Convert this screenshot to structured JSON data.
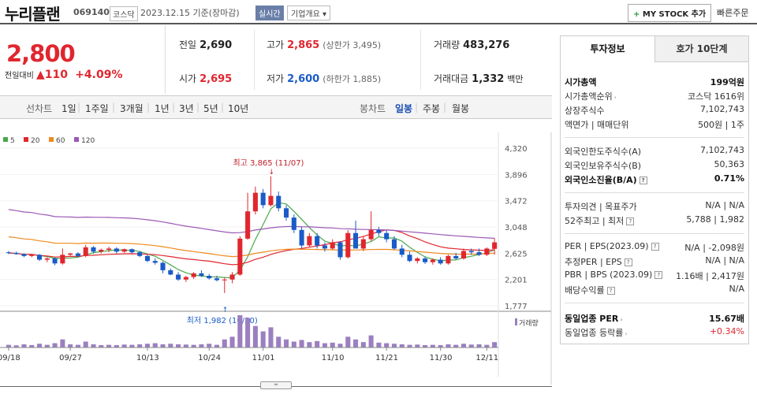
{
  "header": {
    "name": "누리플랜",
    "code": "069140",
    "market": "코스닥",
    "date": "2023.12.15 기준(장마감)",
    "realtime": "실시간",
    "company_info": "기업개요",
    "mystock": "MY STOCK 추가",
    "quick_order": "빠른주문"
  },
  "price": {
    "current": "2,800",
    "change_label": "전일대비",
    "change": "110",
    "change_pct": "+4.09%"
  },
  "stats": {
    "prev_label": "전일",
    "prev": "2,690",
    "high_label": "고가",
    "high": "2,865",
    "upper_limit": "(상한가 3,495)",
    "volume_label": "거래량",
    "volume": "483,276",
    "open_label": "시가",
    "open": "2,695",
    "low_label": "저가",
    "low": "2,600",
    "lower_limit": "(하한가 1,885)",
    "amount_label": "거래대금",
    "amount": "1,332",
    "amount_unit": "백만"
  },
  "periods": {
    "line_label": "선차트",
    "items": [
      "1일",
      "1주일",
      "3개월",
      "1년",
      "3년",
      "5년",
      "10년"
    ],
    "candle_label": "봉차트",
    "candles": [
      "일봉",
      "주봉",
      "월봉"
    ],
    "active_candle": "일봉"
  },
  "chart_data": {
    "type": "candlestick",
    "legend": [
      "5",
      "20",
      "60",
      "120"
    ],
    "ma_colors": [
      "#4aa84a",
      "#e0262f",
      "#f0891e",
      "#9b59b6"
    ],
    "y_ticks": [
      "4,320",
      "3,896",
      "3,472",
      "3,048",
      "2,625",
      "2,201",
      "1,777"
    ],
    "x_labels": [
      "09/18",
      "09/27",
      "10/13",
      "10/24",
      "11/01",
      "11/10",
      "11/21",
      "11/30",
      "12/11"
    ],
    "high_note": "최고 3,865 (11/07)",
    "low_note": "최저 1,982 (10/30)",
    "volume_label": "거래량",
    "candles": [
      [
        2640,
        2660,
        2610,
        2630
      ],
      [
        2630,
        2650,
        2600,
        2610
      ],
      [
        2610,
        2625,
        2560,
        2580
      ],
      [
        2580,
        2610,
        2560,
        2600
      ],
      [
        2600,
        2610,
        2500,
        2520
      ],
      [
        2520,
        2560,
        2480,
        2540
      ],
      [
        2540,
        2560,
        2430,
        2460
      ],
      [
        2460,
        2700,
        2440,
        2600
      ],
      [
        2600,
        2630,
        2580,
        2620
      ],
      [
        2620,
        2640,
        2560,
        2580
      ],
      [
        2580,
        2760,
        2560,
        2720
      ],
      [
        2720,
        2740,
        2620,
        2650
      ],
      [
        2650,
        2700,
        2620,
        2680
      ],
      [
        2680,
        2730,
        2640,
        2700
      ],
      [
        2700,
        2720,
        2620,
        2650
      ],
      [
        2650,
        2700,
        2630,
        2690
      ],
      [
        2690,
        2700,
        2620,
        2640
      ],
      [
        2640,
        2660,
        2560,
        2580
      ],
      [
        2580,
        2600,
        2480,
        2500
      ],
      [
        2500,
        2540,
        2440,
        2470
      ],
      [
        2470,
        2490,
        2300,
        2350
      ],
      [
        2350,
        2380,
        2270,
        2280
      ],
      [
        2280,
        2320,
        2180,
        2200
      ],
      [
        2200,
        2260,
        2160,
        2240
      ],
      [
        2240,
        2320,
        2210,
        2300
      ],
      [
        2300,
        2350,
        2240,
        2260
      ],
      [
        2260,
        2290,
        2200,
        2220
      ],
      [
        2220,
        2260,
        2170,
        2190
      ],
      [
        2190,
        2230,
        1982,
        2200
      ],
      [
        2200,
        2320,
        2140,
        2280
      ],
      [
        2280,
        2900,
        2260,
        2860
      ],
      [
        2860,
        3600,
        2840,
        3300
      ],
      [
        3300,
        3700,
        3250,
        3600
      ],
      [
        3600,
        3660,
        3350,
        3400
      ],
      [
        3400,
        3865,
        3380,
        3550
      ],
      [
        3550,
        3620,
        3300,
        3350
      ],
      [
        3350,
        3400,
        3150,
        3200
      ],
      [
        3200,
        3250,
        2950,
        3000
      ],
      [
        3000,
        3050,
        2700,
        2750
      ],
      [
        2750,
        2950,
        2720,
        2900
      ],
      [
        2900,
        2950,
        2700,
        2750
      ],
      [
        2750,
        2800,
        2650,
        2700
      ],
      [
        2700,
        2850,
        2680,
        2800
      ],
      [
        2800,
        2820,
        2520,
        2560
      ],
      [
        2560,
        3000,
        2540,
        2950
      ],
      [
        2950,
        3150,
        2700,
        2700
      ],
      [
        2700,
        2900,
        2660,
        2850
      ],
      [
        2850,
        3300,
        2820,
        3000
      ],
      [
        3000,
        3050,
        2900,
        2950
      ],
      [
        2950,
        3000,
        2800,
        2850
      ],
      [
        2850,
        2900,
        2680,
        2700
      ],
      [
        2700,
        2760,
        2560,
        2600
      ],
      [
        2600,
        2650,
        2480,
        2500
      ],
      [
        2500,
        2560,
        2460,
        2540
      ],
      [
        2540,
        2570,
        2450,
        2480
      ],
      [
        2480,
        2540,
        2440,
        2520
      ],
      [
        2520,
        2560,
        2440,
        2460
      ],
      [
        2460,
        2600,
        2440,
        2580
      ],
      [
        2580,
        2630,
        2520,
        2540
      ],
      [
        2540,
        2700,
        2520,
        2660
      ],
      [
        2660,
        2700,
        2600,
        2640
      ],
      [
        2640,
        2700,
        2580,
        2600
      ],
      [
        2600,
        2720,
        2580,
        2700
      ],
      [
        2695,
        2865,
        2600,
        2800
      ]
    ],
    "volumes": [
      10,
      8,
      12,
      9,
      14,
      10,
      16,
      30,
      12,
      10,
      22,
      12,
      9,
      10,
      9,
      11,
      10,
      12,
      14,
      16,
      12,
      14,
      12,
      11,
      10,
      12,
      14,
      10,
      30,
      40,
      120,
      110,
      80,
      60,
      75,
      40,
      30,
      22,
      28,
      20,
      24,
      16,
      18,
      14,
      40,
      30,
      20,
      45,
      18,
      16,
      14,
      12,
      10,
      11,
      9,
      10,
      9,
      12,
      10,
      14,
      11,
      12,
      10,
      20
    ]
  },
  "right_panel": {
    "tab_on": "투자정보",
    "tab_off": "호가 10단계",
    "rows": [
      {
        "k": "시가총액",
        "v": "199억원",
        "bold": true
      },
      {
        "k": "시가총액순위",
        "v": "코스닥 1616위"
      },
      {
        "k": "상장주식수",
        "v": "7,102,743"
      },
      {
        "k": "액면가 | 매매단위",
        "v": "500원 | 1주"
      },
      {
        "k": "외국인한도주식수(A)",
        "v": "7,102,743"
      },
      {
        "k": "외국인보유주식수(B)",
        "v": "50,363"
      },
      {
        "k": "외국인소진율(B/A)",
        "v": "0.71%",
        "bold": true
      },
      {
        "k": "투자의견 | 목표주가",
        "v": "N/A | N/A"
      },
      {
        "k": "52주최고 | 최저",
        "v": "5,788 | 1,982"
      },
      {
        "k": "PER | EPS(2023.09)",
        "v": "N/A | -2,098원"
      },
      {
        "k": "추정PER | EPS",
        "v": "N/A | N/A"
      },
      {
        "k": "PBR | BPS (2023.09)",
        "v": "1.16배 | 2,417원"
      },
      {
        "k": "배당수익률",
        "v": "N/A"
      },
      {
        "k": "동일업종 PER",
        "v": "15.67배",
        "bold": true
      },
      {
        "k": "동일업종 등락률",
        "v": "+0.34%",
        "red": true
      }
    ]
  }
}
